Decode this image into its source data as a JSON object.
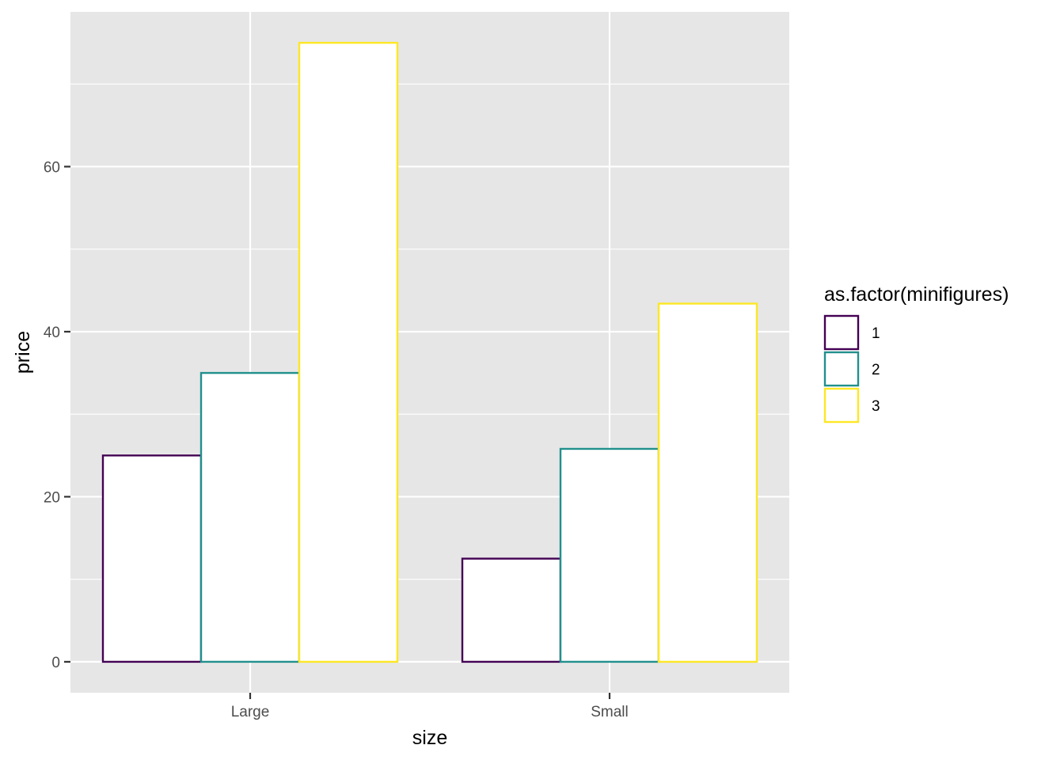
{
  "chart_data": {
    "type": "bar",
    "categories": [
      "Large",
      "Small"
    ],
    "series": [
      {
        "name": "1",
        "values": [
          25,
          12.5
        ],
        "color": "#440154"
      },
      {
        "name": "2",
        "values": [
          35,
          25.8
        ],
        "color": "#21908C"
      },
      {
        "name": "3",
        "values": [
          75,
          43.4
        ],
        "color": "#FDE725"
      }
    ],
    "xlabel": "size",
    "ylabel": "price",
    "ylim": [
      -3.75,
      78.75
    ],
    "yticks": [
      0,
      20,
      40,
      60
    ],
    "legend": {
      "title": "as.factor(minifigures)",
      "position": "right"
    },
    "colors": {
      "panel_background": "#E6E6E6",
      "grid": "#FFFFFF",
      "bar_fill": "#FFFFFF",
      "text": "#4D4D4D",
      "title_text": "#000000"
    }
  }
}
